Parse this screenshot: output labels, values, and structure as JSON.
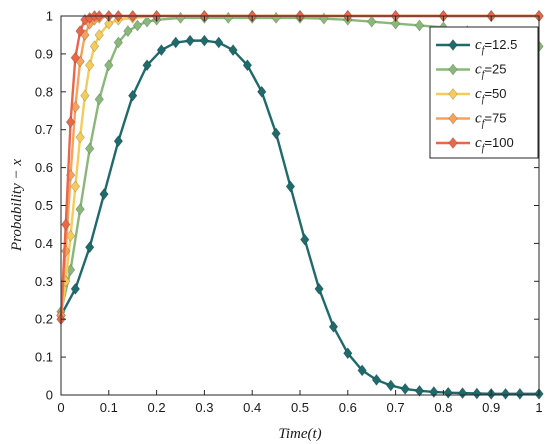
{
  "chart_data": {
    "type": "line",
    "xlabel": "Time(t)",
    "ylabel": "Probability − x",
    "xlim": [
      0,
      1
    ],
    "ylim": [
      0,
      1
    ],
    "xticks": [
      "0",
      "0.1",
      "0.2",
      "0.3",
      "0.4",
      "0.5",
      "0.6",
      "0.7",
      "0.8",
      "0.9",
      "1"
    ],
    "yticks": [
      "0",
      "0.1",
      "0.2",
      "0.3",
      "0.4",
      "0.5",
      "0.6",
      "0.7",
      "0.8",
      "0.9",
      "1"
    ],
    "grid": false,
    "legend_position": "top-right",
    "marker": "diamond",
    "series": [
      {
        "name": "c_f=12.5",
        "legend_prefix": "c",
        "legend_sub": "f",
        "legend_value": "=12.5",
        "color": "#1f6a6a",
        "x": [
          0,
          0.03,
          0.06,
          0.09,
          0.12,
          0.15,
          0.18,
          0.21,
          0.24,
          0.27,
          0.3,
          0.33,
          0.36,
          0.39,
          0.42,
          0.45,
          0.48,
          0.51,
          0.54,
          0.57,
          0.6,
          0.63,
          0.66,
          0.69,
          0.72,
          0.75,
          0.78,
          0.81,
          0.84,
          0.87,
          0.9,
          0.93,
          0.96,
          1.0
        ],
        "y": [
          0.21,
          0.28,
          0.39,
          0.53,
          0.67,
          0.79,
          0.87,
          0.91,
          0.93,
          0.935,
          0.935,
          0.93,
          0.91,
          0.87,
          0.8,
          0.69,
          0.55,
          0.41,
          0.28,
          0.18,
          0.11,
          0.065,
          0.04,
          0.025,
          0.016,
          0.011,
          0.008,
          0.006,
          0.005,
          0.004,
          0.003,
          0.003,
          0.003,
          0.003
        ]
      },
      {
        "name": "c_f=25",
        "legend_prefix": "c",
        "legend_sub": "f",
        "legend_value": "=25",
        "color": "#8ab77a",
        "x": [
          0,
          0.02,
          0.04,
          0.06,
          0.08,
          0.1,
          0.12,
          0.14,
          0.16,
          0.18,
          0.2,
          0.25,
          0.3,
          0.35,
          0.4,
          0.45,
          0.5,
          0.55,
          0.6,
          0.65,
          0.7,
          0.75,
          0.8,
          0.85,
          0.9,
          0.95,
          1.0
        ],
        "y": [
          0.22,
          0.33,
          0.49,
          0.65,
          0.78,
          0.87,
          0.93,
          0.96,
          0.975,
          0.985,
          0.99,
          0.995,
          0.995,
          0.995,
          0.995,
          0.995,
          0.995,
          0.993,
          0.99,
          0.985,
          0.98,
          0.975,
          0.97,
          0.96,
          0.95,
          0.94,
          0.92
        ]
      },
      {
        "name": "c_f=50",
        "legend_prefix": "c",
        "legend_sub": "f",
        "legend_value": "=50",
        "color": "#f5cc5a",
        "x": [
          0,
          0.01,
          0.02,
          0.03,
          0.04,
          0.05,
          0.06,
          0.07,
          0.08,
          0.1,
          0.12,
          0.15,
          0.2,
          0.3,
          0.4,
          0.5,
          0.6,
          0.7,
          0.8,
          0.9,
          1.0
        ],
        "y": [
          0.21,
          0.3,
          0.42,
          0.55,
          0.68,
          0.79,
          0.87,
          0.92,
          0.95,
          0.98,
          0.99,
          0.995,
          1.0,
          1.0,
          1.0,
          1.0,
          1.0,
          1.0,
          1.0,
          1.0,
          1.0
        ]
      },
      {
        "name": "c_f=75",
        "legend_prefix": "c",
        "legend_sub": "f",
        "legend_value": "=75",
        "color": "#f5a35a",
        "x": [
          0,
          0.01,
          0.02,
          0.03,
          0.04,
          0.05,
          0.06,
          0.07,
          0.08,
          0.1,
          0.12,
          0.15,
          0.2,
          0.3,
          0.4,
          0.5,
          0.6,
          0.7,
          0.8,
          0.9,
          1.0
        ],
        "y": [
          0.21,
          0.38,
          0.58,
          0.76,
          0.88,
          0.95,
          0.98,
          0.99,
          0.995,
          1.0,
          1.0,
          1.0,
          1.0,
          1.0,
          1.0,
          1.0,
          1.0,
          1.0,
          1.0,
          1.0,
          1.0
        ]
      },
      {
        "name": "c_f=100",
        "legend_prefix": "c",
        "legend_sub": "f",
        "legend_value": "=100",
        "color": "#e8664a",
        "x": [
          0,
          0.01,
          0.02,
          0.03,
          0.04,
          0.05,
          0.06,
          0.07,
          0.08,
          0.1,
          0.12,
          0.15,
          0.2,
          0.3,
          0.4,
          0.5,
          0.6,
          0.7,
          0.8,
          0.9,
          1.0
        ],
        "y": [
          0.2,
          0.45,
          0.72,
          0.89,
          0.96,
          0.99,
          0.995,
          1.0,
          1.0,
          1.0,
          1.0,
          1.0,
          1.0,
          1.0,
          1.0,
          1.0,
          1.0,
          1.0,
          1.0,
          1.0,
          1.0
        ]
      }
    ]
  }
}
